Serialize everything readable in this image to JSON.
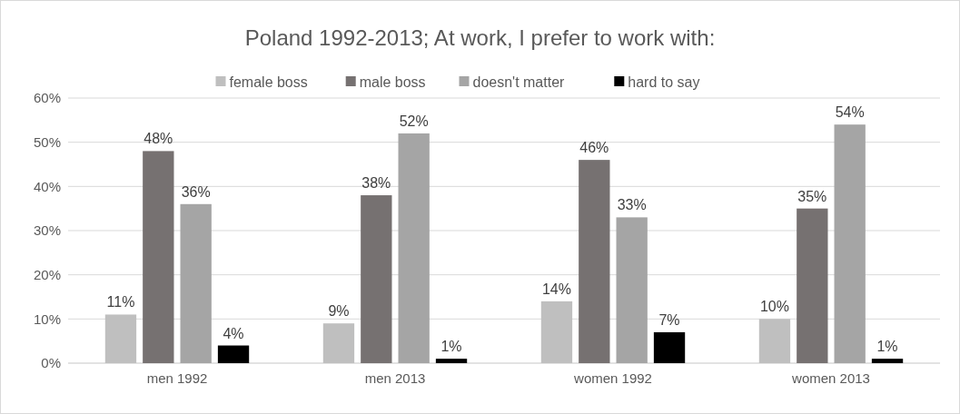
{
  "chart_data": {
    "type": "bar",
    "title": "Poland 1992-2013; At work, I prefer to work with:",
    "categories": [
      "men 1992",
      "men 2013",
      "women 1992",
      "women 2013"
    ],
    "series": [
      {
        "name": "female boss",
        "color": "#bfbfbf",
        "values": [
          11,
          9,
          14,
          10
        ],
        "value_labels": [
          "11%",
          "9%",
          "14%",
          "10%"
        ]
      },
      {
        "name": "male boss",
        "color": "#767171",
        "values": [
          48,
          38,
          46,
          35
        ],
        "value_labels": [
          "48%",
          "38%",
          "46%",
          "35%"
        ]
      },
      {
        "name": "doesn't matter",
        "color": "#a5a5a5",
        "values": [
          36,
          52,
          33,
          54
        ],
        "value_labels": [
          "36%",
          "52%",
          "33%",
          "54%"
        ]
      },
      {
        "name": "hard to say",
        "color": "#000000",
        "values": [
          4,
          1,
          7,
          1
        ],
        "value_labels": [
          "4%",
          "1%",
          "7%",
          "1%"
        ]
      }
    ],
    "ylim": [
      0,
      60
    ],
    "yticks": [
      {
        "value": 0,
        "label": "0%"
      },
      {
        "value": 10,
        "label": "10%"
      },
      {
        "value": 20,
        "label": "20%"
      },
      {
        "value": 30,
        "label": "30%"
      },
      {
        "value": 40,
        "label": "40%"
      },
      {
        "value": 50,
        "label": "50%"
      },
      {
        "value": 60,
        "label": "60%"
      }
    ],
    "grid": "y",
    "legend": "top"
  }
}
